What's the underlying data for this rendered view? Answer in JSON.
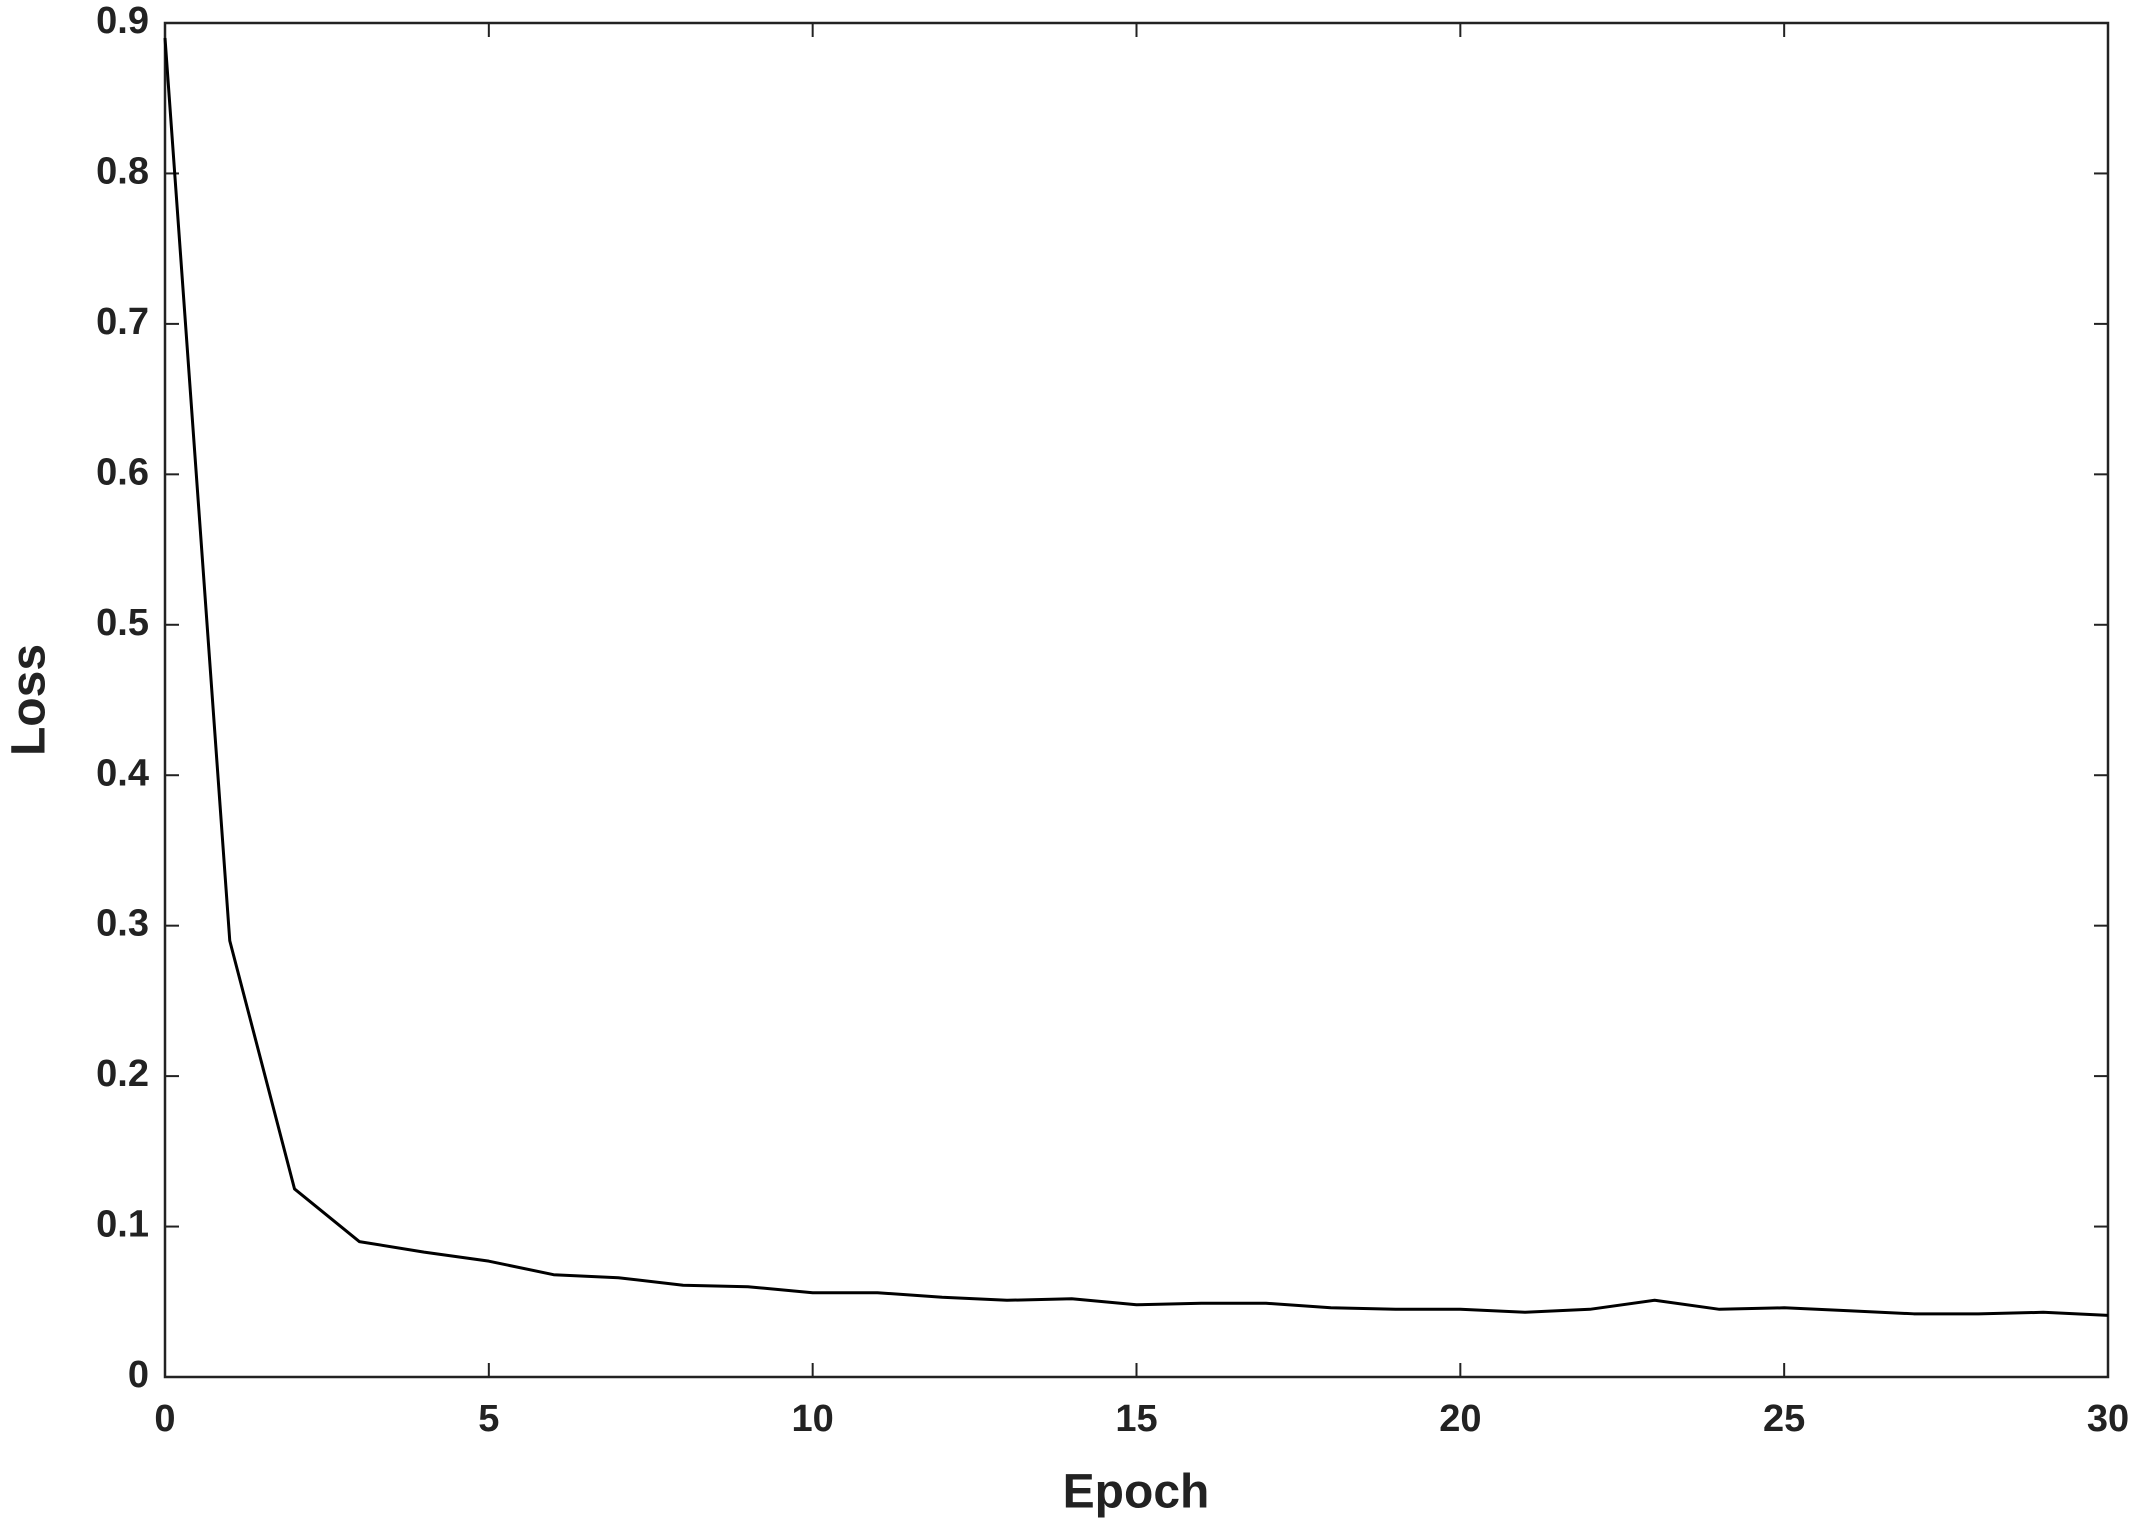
{
  "chart_data": {
    "type": "line",
    "xlabel": "Epoch",
    "ylabel": "Loss",
    "x": [
      0,
      1,
      2,
      3,
      4,
      5,
      6,
      7,
      8,
      9,
      10,
      11,
      12,
      13,
      14,
      15,
      16,
      17,
      18,
      19,
      20,
      21,
      22,
      23,
      24,
      25,
      26,
      27,
      28,
      29,
      30
    ],
    "series": [
      {
        "color": "#000000",
        "values": [
          0.89,
          0.29,
          0.125,
          0.09,
          0.083,
          0.077,
          0.068,
          0.066,
          0.061,
          0.06,
          0.056,
          0.056,
          0.053,
          0.051,
          0.052,
          0.048,
          0.049,
          0.049,
          0.046,
          0.045,
          0.045,
          0.043,
          0.045,
          0.051,
          0.045,
          0.046,
          0.044,
          0.042,
          0.042,
          0.043,
          0.041
        ]
      }
    ],
    "xlim": [
      0,
      30
    ],
    "xticks": [
      0,
      5,
      10,
      15,
      20,
      25,
      30
    ],
    "ylim": [
      0,
      0.9
    ],
    "yticks": [
      0,
      0.1,
      0.2,
      0.3,
      0.4,
      0.5,
      0.6,
      0.7,
      0.8,
      0.9
    ],
    "grid": false
  }
}
